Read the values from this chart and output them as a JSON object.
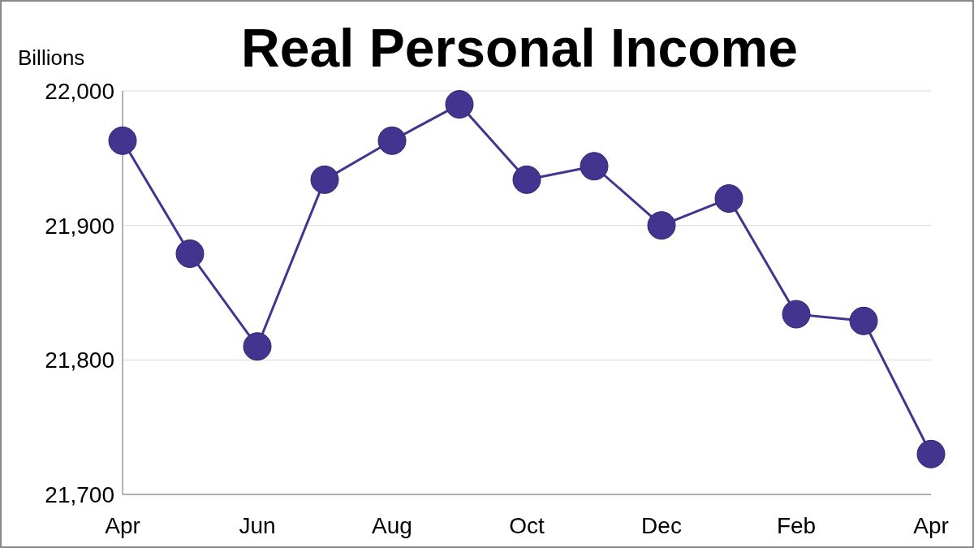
{
  "chart_data": {
    "type": "line",
    "title": "Real Personal Income",
    "ylabel": "Billions",
    "categories": [
      "Apr",
      null,
      "Jun",
      null,
      "Aug",
      null,
      "Oct",
      null,
      "Dec",
      null,
      "Feb",
      null,
      "Apr"
    ],
    "series": [
      {
        "color": "#433490",
        "values": [
          21963,
          21879,
          21810,
          21934,
          21963,
          21990,
          21934,
          21944,
          21900,
          21920,
          21834,
          21829,
          21730
        ]
      }
    ],
    "ylim": [
      21700,
      22000
    ],
    "yticks": [
      {
        "value": 21700,
        "label": "21,700"
      },
      {
        "value": 21800,
        "label": "21,800"
      },
      {
        "value": 21900,
        "label": "21,900"
      },
      {
        "value": 22000,
        "label": "22,000"
      }
    ],
    "grid": "y",
    "marker": "circle",
    "line_style": "solid"
  }
}
